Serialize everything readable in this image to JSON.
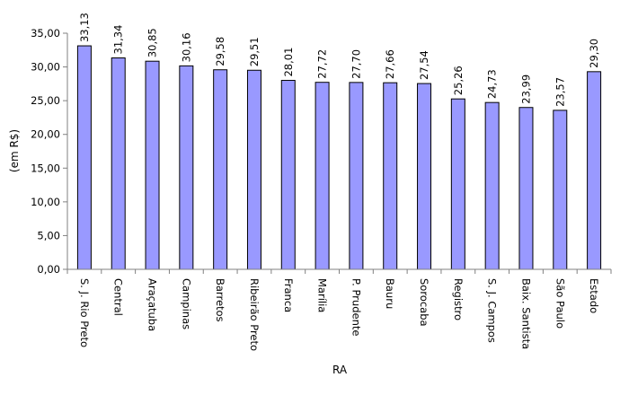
{
  "chart_data": {
    "type": "bar",
    "title": "",
    "xlabel": "RA",
    "ylabel": "(em R$)",
    "ylim": [
      0,
      35
    ],
    "yticks": [
      "0,00",
      "5,00",
      "10,00",
      "15,00",
      "20,00",
      "25,00",
      "30,00",
      "35,00"
    ],
    "ytick_values": [
      0,
      5,
      10,
      15,
      20,
      25,
      30,
      35
    ],
    "grid": false,
    "legend": "none",
    "categories": [
      "S. J. Rio Preto",
      "Central",
      "Araçatuba",
      "Campinas",
      "Barretos",
      "Ribeirão Preto",
      "Franca",
      "Marília",
      "P. Prudente",
      "Bauru",
      "Sorocaba",
      "Registro",
      "S. J. Campos",
      "Baix. Santista",
      "São Paulo",
      "Estado"
    ],
    "values": [
      33.13,
      31.34,
      30.85,
      30.16,
      29.58,
      29.51,
      28.01,
      27.72,
      27.7,
      27.66,
      27.54,
      25.26,
      24.73,
      23.99,
      23.57,
      29.3
    ],
    "value_labels": [
      "33,13",
      "31,34",
      "30,85",
      "30,16",
      "29,58",
      "29,51",
      "28,01",
      "27,72",
      "27,70",
      "27,66",
      "27,54",
      "25,26",
      "24,73",
      "23,99",
      "23,57",
      "29,30"
    ],
    "colors": {
      "bar_fill": "#9999ff",
      "bar_stroke": "#000000",
      "axis": "#808080"
    }
  }
}
